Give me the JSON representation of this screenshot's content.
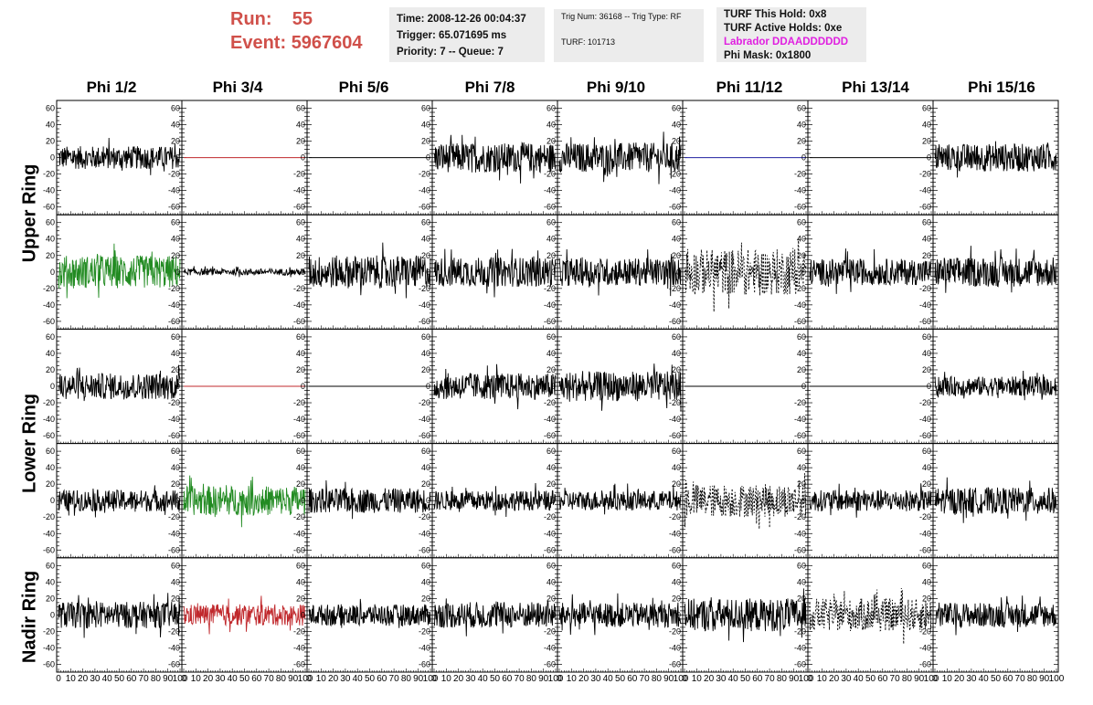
{
  "header": {
    "run_label": "Run:",
    "run_value": "55",
    "event_label": "Event:",
    "event_value": "5967604"
  },
  "info1": {
    "time": "Time: 2008-12-26 00:04:37",
    "trigger": "Trigger: 65.071695 ms",
    "priority": "Priority: 7 -- Queue: 7"
  },
  "info2": {
    "trig": "Trig Num: 36168 -- Trig Type: RF",
    "turf": "TURF: 101713"
  },
  "info3": {
    "this_hold": "TURF This Hold: 0x8",
    "active_holds": "TURF Active Holds: 0xe",
    "labrador": "Labrador DDAADDDDDD",
    "phi_mask": "Phi Mask: 0x1800"
  },
  "colors": {
    "run_text": "#d0504a",
    "green_trace": "#228b22",
    "red_trace": "#c0282c",
    "blue_trace": "#2020a0",
    "labrador": "#e020e0"
  },
  "chart_data": {
    "type": "line",
    "columns": [
      "Phi 1/2",
      "Phi 3/4",
      "Phi 5/6",
      "Phi 7/8",
      "Phi 9/10",
      "Phi 11/12",
      "Phi 13/14",
      "Phi 15/16"
    ],
    "rings": [
      "Upper Ring",
      "Lower Ring",
      "Nadir Ring"
    ],
    "xlim": [
      0,
      100
    ],
    "x_ticks": [
      "0",
      "10",
      "20",
      "30",
      "40",
      "50",
      "60",
      "70",
      "80",
      "90",
      "100"
    ],
    "ylim": [
      -65,
      65
    ],
    "y_ticks": [
      "60",
      "40",
      "20",
      "0",
      "-20",
      "-40",
      "-60"
    ],
    "panel_rows": [
      [
        {
          "style": "noise",
          "amp": 14,
          "color": "black"
        },
        {
          "style": "flat",
          "color": "red"
        },
        {
          "style": "flat",
          "color": "black"
        },
        {
          "style": "noise",
          "amp": 18,
          "color": "black"
        },
        {
          "style": "noise",
          "amp": 18,
          "color": "black"
        },
        {
          "style": "flat",
          "color": "blue"
        },
        {
          "style": "flat",
          "color": "black"
        },
        {
          "style": "noise",
          "amp": 17,
          "color": "black"
        }
      ],
      [
        {
          "style": "noise",
          "amp": 20,
          "color": "green"
        },
        {
          "style": "noise",
          "amp": 4,
          "color": "black"
        },
        {
          "style": "noise",
          "amp": 20,
          "color": "black"
        },
        {
          "style": "noise",
          "amp": 18,
          "color": "black"
        },
        {
          "style": "noise",
          "amp": 17,
          "color": "black"
        },
        {
          "style": "dashed",
          "amp": 28,
          "color": "black"
        },
        {
          "style": "noise",
          "amp": 16,
          "color": "black"
        },
        {
          "style": "noise",
          "amp": 18,
          "color": "black"
        }
      ],
      [
        {
          "style": "noise",
          "amp": 16,
          "color": "black"
        },
        {
          "style": "flat",
          "color": "red"
        },
        {
          "style": "flat",
          "color": "black"
        },
        {
          "style": "noise",
          "amp": 16,
          "color": "black"
        },
        {
          "style": "noise",
          "amp": 18,
          "color": "black"
        },
        {
          "style": "flat",
          "color": "black"
        },
        {
          "style": "flat",
          "color": "black"
        },
        {
          "style": "noise",
          "amp": 12,
          "color": "black"
        }
      ],
      [
        {
          "style": "noise",
          "amp": 13,
          "color": "black"
        },
        {
          "style": "noise",
          "amp": 18,
          "color": "green"
        },
        {
          "style": "noise",
          "amp": 15,
          "color": "black"
        },
        {
          "style": "noise",
          "amp": 12,
          "color": "black"
        },
        {
          "style": "noise",
          "amp": 12,
          "color": "black"
        },
        {
          "style": "dashed",
          "amp": 20,
          "color": "black"
        },
        {
          "style": "noise",
          "amp": 13,
          "color": "black"
        },
        {
          "style": "noise",
          "amp": 16,
          "color": "black"
        }
      ],
      [
        {
          "style": "noise",
          "amp": 16,
          "color": "black"
        },
        {
          "style": "noise",
          "amp": 13,
          "color": "red"
        },
        {
          "style": "noise",
          "amp": 13,
          "color": "black"
        },
        {
          "style": "noise",
          "amp": 16,
          "color": "black"
        },
        {
          "style": "noise",
          "amp": 15,
          "color": "black"
        },
        {
          "style": "noise",
          "amp": 20,
          "color": "black"
        },
        {
          "style": "dashed",
          "amp": 20,
          "color": "black"
        },
        {
          "style": "noise",
          "amp": 15,
          "color": "black"
        }
      ]
    ]
  }
}
